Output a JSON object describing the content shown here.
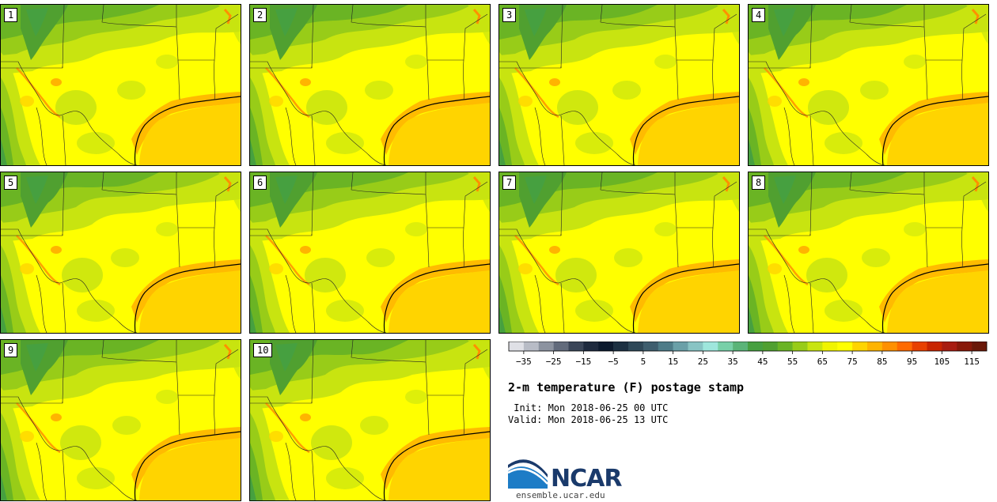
{
  "panels": [
    "1",
    "2",
    "3",
    "4",
    "5",
    "6",
    "7",
    "8",
    "9",
    "10"
  ],
  "colorbar": {
    "colors": [
      "#dfe0e6",
      "#b8bcc6",
      "#8c93a0",
      "#626b7c",
      "#3a4558",
      "#1e2a3e",
      "#0c1a2e",
      "#1c3042",
      "#2e4858",
      "#3e5e6e",
      "#4e7c88",
      "#6aa0a8",
      "#88c4c4",
      "#9ee6dc",
      "#78d0a8",
      "#5ab478",
      "#46a040",
      "#50a030",
      "#6ab424",
      "#98cc18",
      "#c8e410",
      "#f0f400",
      "#ffff00",
      "#ffd400",
      "#ffb400",
      "#ff9000",
      "#ff6a00",
      "#e84000",
      "#c82400",
      "#a81c10",
      "#881808",
      "#6a1808"
    ],
    "ticks": [
      "−35",
      "−25",
      "−15",
      "−5",
      "5",
      "15",
      "25",
      "35",
      "45",
      "55",
      "65",
      "75",
      "85",
      "95",
      "105",
      "115"
    ]
  },
  "title": "2-m temperature (F) postage stamp",
  "init": " Init: Mon 2018-06-25 00 UTC",
  "valid": "Valid: Mon 2018-06-25 13 UTC",
  "logo": {
    "text": "NCAR",
    "url": "ensemble.ucar.edu"
  }
}
